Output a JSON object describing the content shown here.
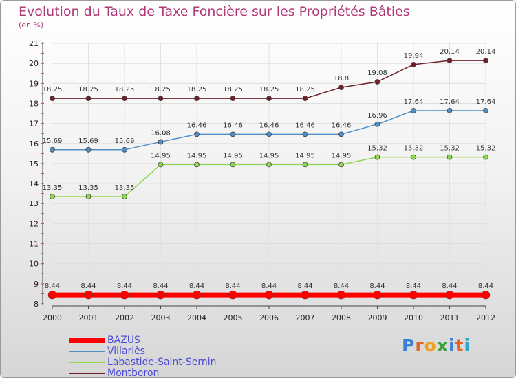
{
  "title": "Evolution du Taux de Taxe Foncière sur les Propriétés Bâties",
  "unit_label": "(en %)",
  "logo": {
    "letters": [
      {
        "ch": "P",
        "color": "#3b7fd8"
      },
      {
        "ch": "r",
        "color": "#e0642a"
      },
      {
        "ch": "o",
        "color": "#f0a020"
      },
      {
        "ch": "x",
        "color": "#3aa03a"
      },
      {
        "ch": "i",
        "color": "#3b7fd8"
      },
      {
        "ch": "t",
        "color": "#e0642a"
      },
      {
        "ch": "i",
        "color": "#2aa8c8"
      }
    ]
  },
  "chart_data": {
    "type": "line",
    "x": [
      "2000",
      "2001",
      "2002",
      "2003",
      "2004",
      "2005",
      "2006",
      "2007",
      "2008",
      "2009",
      "2010",
      "2011",
      "2012"
    ],
    "ylim": [
      8,
      21
    ],
    "yticks": [
      "8",
      "9",
      "10",
      "11",
      "12",
      "13",
      "14",
      "15",
      "16",
      "17",
      "18",
      "19",
      "20",
      "21"
    ],
    "grid": true,
    "series": [
      {
        "name": "Montberon",
        "color": "#6e1f2a",
        "width": 1.5,
        "values": [
          18.25,
          18.25,
          18.25,
          18.25,
          18.25,
          18.25,
          18.25,
          18.25,
          18.8,
          19.08,
          19.94,
          20.14,
          20.14
        ],
        "labels": [
          "18.25",
          "18.25",
          "18.25",
          "18.25",
          "18.25",
          "18.25",
          "18.25",
          "18.25",
          "18.8",
          "19.08",
          "19.94",
          "20.14",
          "20.14"
        ]
      },
      {
        "name": "Villariès",
        "color": "#4f8fc6",
        "width": 1.5,
        "values": [
          15.69,
          15.69,
          15.69,
          16.08,
          16.46,
          16.46,
          16.46,
          16.46,
          16.46,
          16.96,
          17.64,
          17.64,
          17.64
        ],
        "labels": [
          "15.69",
          "15.69",
          "15.69",
          "16.08",
          "16.46",
          "16.46",
          "16.46",
          "16.46",
          "16.46",
          "16.96",
          "17.64",
          "17.64",
          "17.64"
        ]
      },
      {
        "name": "Labastide-Saint-Sernin",
        "color": "#8fd84f",
        "width": 1.5,
        "values": [
          13.35,
          13.35,
          13.35,
          14.95,
          14.95,
          14.95,
          14.95,
          14.95,
          14.95,
          15.32,
          15.32,
          15.32,
          15.32
        ],
        "labels": [
          "13.35",
          "13.35",
          "13.35",
          "14.95",
          "14.95",
          "14.95",
          "14.95",
          "14.95",
          "14.95",
          "15.32",
          "15.32",
          "15.32",
          "15.32"
        ]
      },
      {
        "name": "BAZUS",
        "color": "#ff0000",
        "width": 7,
        "values": [
          8.44,
          8.44,
          8.44,
          8.44,
          8.44,
          8.44,
          8.44,
          8.44,
          8.44,
          8.44,
          8.44,
          8.44,
          8.44
        ],
        "labels": [
          "8.44",
          "8.44",
          "8.44",
          "8.44",
          "8.44",
          "8.44",
          "8.44",
          "8.44",
          "8.44",
          "8.44",
          "8.44",
          "8.44",
          "8.44"
        ]
      }
    ],
    "legend": [
      {
        "name": "BAZUS",
        "color": "#ff0000"
      },
      {
        "name": "Villariès",
        "color": "#4f8fc6"
      },
      {
        "name": "Labastide-Saint-Sernin",
        "color": "#8fd84f"
      },
      {
        "name": "Montberon",
        "color": "#6e1f2a"
      }
    ]
  }
}
